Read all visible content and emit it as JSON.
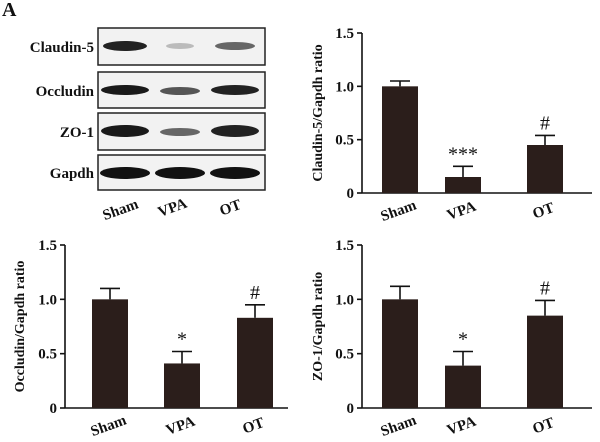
{
  "blot": {
    "panel_label": "A",
    "rows": [
      "Claudin-5",
      "Occludin",
      "ZO-1",
      "Gapdh"
    ],
    "lanes": [
      "Sham",
      "VPA",
      "OT"
    ]
  },
  "chart_data": [
    {
      "type": "bar",
      "ylabel": "Claudin-5/Gapdh ratio",
      "categories": [
        "Sham",
        "VPA",
        "OT"
      ],
      "values": [
        1.0,
        0.15,
        0.45
      ],
      "errors": [
        0.05,
        0.1,
        0.09
      ],
      "bar_labels": [
        null,
        "***",
        "#"
      ],
      "color": "#2b1e1b",
      "ylim": [
        0,
        1.5
      ],
      "yticks": [
        0,
        0.5,
        {
          "value": 1,
          "label": "1.0"
        },
        1.5
      ]
    },
    {
      "type": "bar",
      "ylabel": "Occludin/Gapdh ratio",
      "categories": [
        "Sham",
        "VPA",
        "OT"
      ],
      "values": [
        1.0,
        0.41,
        0.83
      ],
      "errors": [
        0.1,
        0.11,
        0.12
      ],
      "bar_labels": [
        null,
        "*",
        "#"
      ],
      "color": "#2b1e1b",
      "ylim": [
        0,
        1.5
      ],
      "yticks": [
        0,
        0.5,
        {
          "value": 1,
          "label": "1.0"
        },
        1.5
      ]
    },
    {
      "type": "bar",
      "ylabel": "ZO-1/Gapdh ratio",
      "categories": [
        "Sham",
        "VPA",
        "OT"
      ],
      "values": [
        1.0,
        0.39,
        0.85
      ],
      "errors": [
        0.12,
        0.13,
        0.14
      ],
      "bar_labels": [
        null,
        "*",
        "#"
      ],
      "color": "#2b1e1b",
      "ylim": [
        0,
        1.5
      ],
      "yticks": [
        0,
        0.5,
        {
          "value": 1,
          "label": "1.0"
        },
        1.5
      ]
    }
  ]
}
